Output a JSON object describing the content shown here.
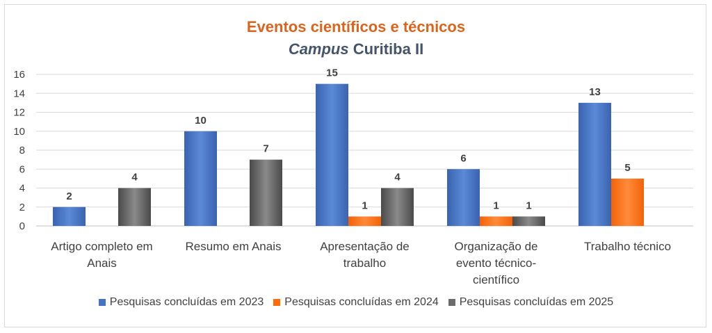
{
  "chart_data": {
    "type": "bar",
    "title": "Eventos científicos e técnicos",
    "subtitle_italic": "Campus",
    "subtitle_rest": "Curitiba II",
    "categories": [
      [
        "Artigo completo em",
        "Anais"
      ],
      [
        "Resumo em Anais"
      ],
      [
        "Apresentação de",
        "trabalho"
      ],
      [
        "Organização de",
        "evento técnico-",
        "científico"
      ],
      [
        "Trabalho técnico"
      ]
    ],
    "series": [
      {
        "name": "Pesquisas concluídas em 2023",
        "values": [
          2,
          10,
          15,
          6,
          13
        ],
        "color": "#4472c4"
      },
      {
        "name": "Pesquisas concluídas em 2024",
        "values": [
          null,
          null,
          1,
          1,
          5
        ],
        "color": "#ff6d0a"
      },
      {
        "name": "Pesquisas concluídas em 2025",
        "values": [
          4,
          7,
          4,
          1,
          null
        ],
        "color": "#6b6b6b"
      }
    ],
    "ylim": [
      0,
      16
    ],
    "yticks": [
      "0",
      "2",
      "4",
      "6",
      "8",
      "10",
      "12",
      "14",
      "16"
    ],
    "grid": true,
    "legend": "bottom",
    "title_color": "#d9641e"
  }
}
